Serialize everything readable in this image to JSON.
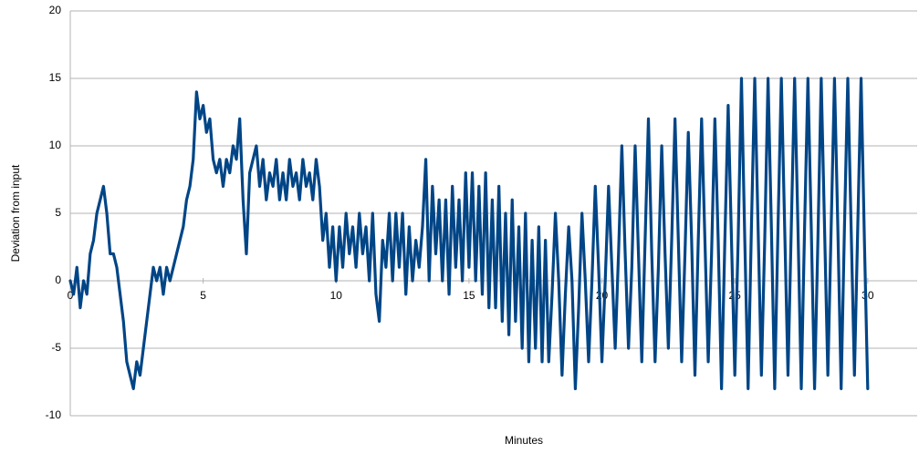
{
  "chart_data": {
    "type": "line",
    "x_label": "Minutes",
    "y_label": "Deviation from input",
    "xlim": [
      0,
      31.86
    ],
    "xticks": [
      0,
      5,
      10,
      15,
      20,
      25,
      30
    ],
    "ylim": [
      -10,
      20
    ],
    "yticks": [
      -10,
      -5,
      0,
      5,
      10,
      15,
      20
    ],
    "grid": true,
    "x": [
      0,
      0.125,
      0.25,
      0.375,
      0.5,
      0.625,
      0.75,
      0.875,
      1,
      1.125,
      1.25,
      1.375,
      1.5,
      1.625,
      1.75,
      1.875,
      2,
      2.125,
      2.25,
      2.375,
      2.5,
      2.625,
      2.75,
      2.875,
      3,
      3.125,
      3.25,
      3.375,
      3.5,
      3.625,
      3.75,
      3.875,
      4,
      4.125,
      4.25,
      4.375,
      4.5,
      4.625,
      4.75,
      4.875,
      5,
      5.125,
      5.25,
      5.375,
      5.5,
      5.625,
      5.75,
      5.875,
      6,
      6.125,
      6.25,
      6.375,
      6.5,
      6.625,
      6.75,
      6.875,
      7,
      7.125,
      7.25,
      7.375,
      7.5,
      7.625,
      7.75,
      7.875,
      8,
      8.125,
      8.25,
      8.375,
      8.5,
      8.625,
      8.75,
      8.875,
      9,
      9.125,
      9.25,
      9.375,
      9.5,
      9.625,
      9.75,
      9.875,
      10,
      10.125,
      10.25,
      10.375,
      10.5,
      10.625,
      10.75,
      10.875,
      11,
      11.125,
      11.25,
      11.375,
      11.5,
      11.625,
      11.75,
      11.875,
      12,
      12.125,
      12.25,
      12.375,
      12.5,
      12.625,
      12.75,
      12.875,
      13,
      13.125,
      13.25,
      13.375,
      13.5,
      13.625,
      13.75,
      13.875,
      14,
      14.125,
      14.25,
      14.375,
      14.5,
      14.625,
      14.75,
      14.875,
      15,
      15.125,
      15.25,
      15.375,
      15.5,
      15.625,
      15.75,
      15.875,
      16,
      16.125,
      16.25,
      16.375,
      16.5,
      16.625,
      16.75,
      16.875,
      17,
      17.125,
      17.25,
      17.375,
      17.5,
      17.625,
      17.75,
      17.875,
      18,
      18.125,
      18.25,
      18.375,
      18.5,
      18.625,
      18.75,
      18.875,
      19,
      19.125,
      19.25,
      19.375,
      19.5,
      19.625,
      19.75,
      19.875,
      20,
      20.125,
      20.25,
      20.375,
      20.5,
      20.625,
      20.75,
      20.875,
      21,
      21.125,
      21.25,
      21.375,
      21.5,
      21.625,
      21.75,
      21.875,
      22,
      22.125,
      22.25,
      22.375,
      22.5,
      22.625,
      22.75,
      22.875,
      23,
      23.125,
      23.25,
      23.375,
      23.5,
      23.625,
      23.75,
      23.875,
      24,
      24.125,
      24.25,
      24.375,
      24.5,
      24.625,
      24.75,
      24.875,
      25,
      25.125,
      25.25,
      25.375,
      25.5,
      25.625,
      25.75,
      25.875,
      26,
      26.125,
      26.25,
      26.375,
      26.5,
      26.625,
      26.75,
      26.875,
      27,
      27.125,
      27.25,
      27.375,
      27.5,
      27.625,
      27.75,
      27.875,
      28,
      28.125,
      28.25,
      28.375,
      28.5,
      28.625,
      28.75,
      28.875,
      29,
      29.125,
      29.25,
      29.375,
      29.5,
      29.625,
      29.75,
      29.875,
      30
    ],
    "series": [
      {
        "color": "#004586",
        "values": [
          0,
          -1,
          1,
          -2,
          0,
          -1,
          2,
          3,
          5,
          6,
          7,
          5,
          2,
          2,
          1,
          -1,
          -3,
          -6,
          -7,
          -8,
          -6,
          -7,
          -5,
          -3,
          -1,
          1,
          0,
          1,
          -1,
          1,
          0,
          1,
          2,
          3,
          4,
          6,
          7,
          9,
          14,
          12,
          13,
          11,
          12,
          9,
          8,
          9,
          7,
          9,
          8,
          10,
          9,
          12,
          6,
          2,
          8,
          9,
          10,
          7,
          9,
          6,
          8,
          7,
          9,
          6,
          8,
          6,
          9,
          7,
          8,
          6,
          9,
          7,
          8,
          6,
          9,
          7,
          3,
          5,
          1,
          4,
          0,
          4,
          1,
          5,
          2,
          4,
          1,
          5,
          2,
          4,
          0,
          5,
          -1,
          -3,
          3,
          1,
          5,
          0,
          5,
          1,
          5,
          -1,
          4,
          0,
          3,
          1,
          4,
          9,
          0,
          7,
          2,
          6,
          0,
          6,
          -1,
          7,
          1,
          6,
          0,
          8,
          1,
          8,
          0,
          7,
          -1,
          8,
          -2,
          6,
          -2,
          7,
          -3,
          5,
          -4,
          6,
          -3,
          4,
          -5,
          5,
          -6,
          3,
          -5,
          4,
          -6,
          3,
          -6,
          -1,
          5,
          0,
          -7,
          -1,
          4,
          0,
          -8,
          -2,
          5,
          0,
          -6,
          0,
          7,
          1,
          -6,
          0,
          7,
          1,
          -5,
          2,
          10,
          2,
          -5,
          1,
          10,
          2,
          -6,
          3,
          12,
          2,
          -6,
          1,
          10,
          2,
          -5,
          3,
          12,
          3,
          -6,
          2,
          11,
          3,
          -7,
          3,
          12,
          3,
          -6,
          2,
          12,
          3,
          -8,
          3,
          13,
          3,
          -7,
          3,
          15,
          3,
          -8,
          4,
          15,
          4,
          -7,
          3,
          15,
          4,
          -8,
          4,
          15,
          4,
          -7,
          4,
          15,
          4,
          -8,
          4,
          15,
          4,
          -8,
          3,
          15,
          4,
          -7,
          4,
          15,
          4,
          -8,
          4,
          15,
          4,
          -7,
          4,
          15,
          3,
          -8
        ]
      }
    ]
  }
}
